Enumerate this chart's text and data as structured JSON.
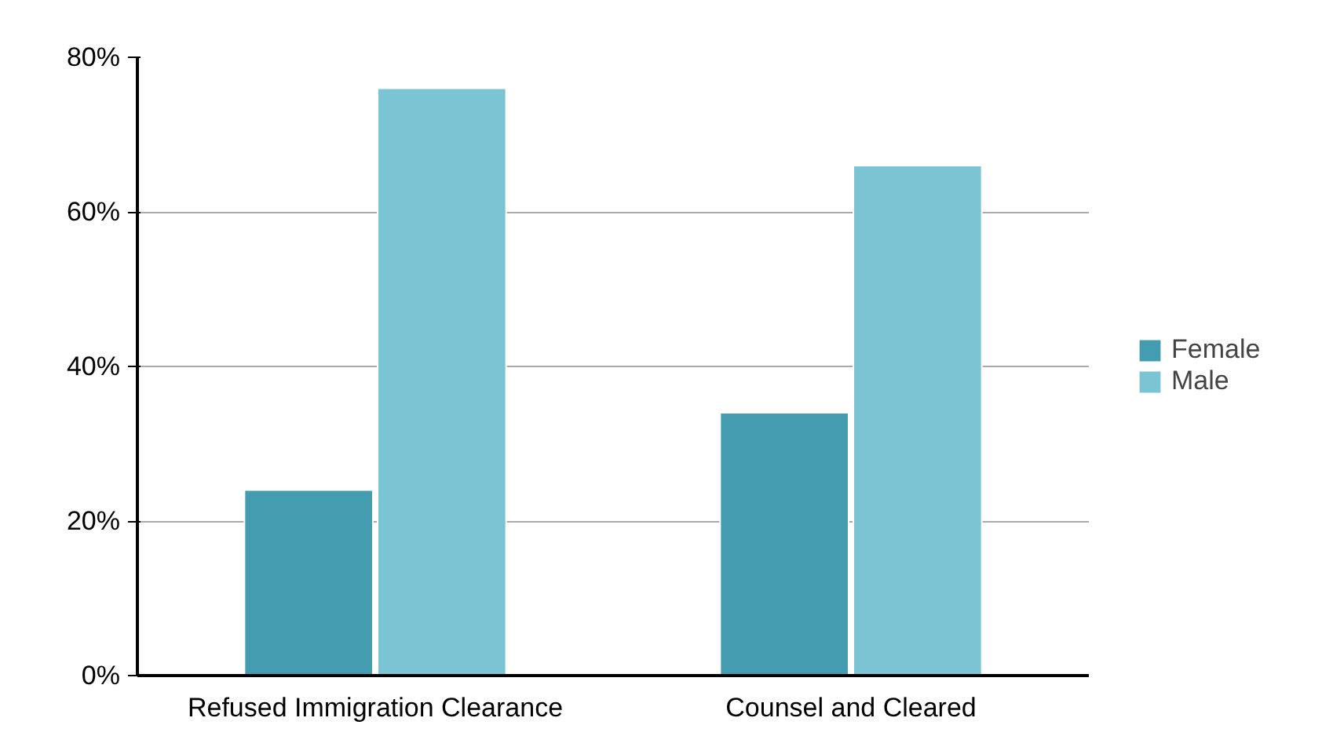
{
  "chart_data": {
    "type": "bar",
    "categories": [
      "Refused Immigration Clearance",
      "Counsel and Cleared"
    ],
    "series": [
      {
        "name": "Female",
        "color": "#439cb0",
        "values": [
          24,
          34
        ]
      },
      {
        "name": "Male",
        "color": "#7bc4d4",
        "values": [
          76,
          66
        ]
      }
    ],
    "ylim": [
      0,
      80
    ],
    "yticks": [
      {
        "value": 0,
        "label": "0%"
      },
      {
        "value": 20,
        "label": "20%"
      },
      {
        "value": 40,
        "label": "40%"
      },
      {
        "value": 60,
        "label": "60%"
      },
      {
        "value": 80,
        "label": "80%"
      }
    ],
    "grid": "y",
    "legend": "right"
  }
}
